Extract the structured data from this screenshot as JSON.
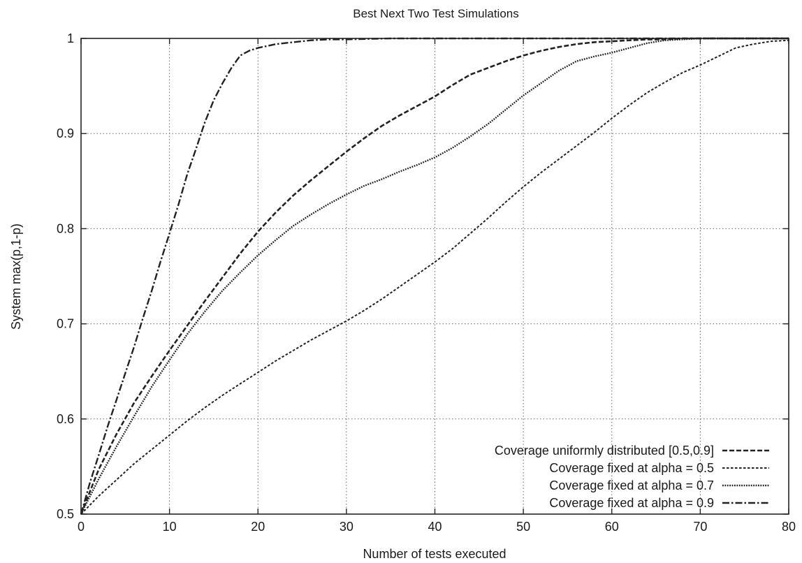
{
  "chart_data": {
    "type": "line",
    "title": "Best Next Two Test Simulations",
    "xlabel": "Number of tests executed",
    "ylabel": "System max(p,1-p)",
    "xlim": [
      0,
      80
    ],
    "ylim": [
      0.5,
      1
    ],
    "x_ticks": [
      "0",
      "10",
      "20",
      "30",
      "40",
      "50",
      "60",
      "70",
      "80"
    ],
    "y_ticks": [
      "0.5",
      "0.6",
      "0.7",
      "0.8",
      "0.9",
      "1"
    ],
    "grid": true,
    "legend_position": "bottom-right",
    "series": [
      {
        "name": "Coverage uniformly distributed [0.5,0.9]",
        "style": "dashed",
        "x": [
          0,
          2,
          4,
          6,
          8,
          10,
          12,
          14,
          16,
          18,
          20,
          22,
          24,
          26,
          28,
          30,
          32,
          34,
          36,
          38,
          40,
          42,
          44,
          46,
          48,
          50,
          52,
          54,
          56,
          58,
          60,
          62,
          64,
          66,
          68,
          70,
          72,
          74,
          76,
          78,
          80
        ],
        "y": [
          0.5,
          0.547,
          0.584,
          0.617,
          0.645,
          0.672,
          0.698,
          0.724,
          0.749,
          0.774,
          0.797,
          0.817,
          0.835,
          0.851,
          0.866,
          0.881,
          0.895,
          0.908,
          0.919,
          0.929,
          0.939,
          0.951,
          0.962,
          0.969,
          0.976,
          0.982,
          0.987,
          0.991,
          0.994,
          0.996,
          0.997,
          0.998,
          0.999,
          0.999,
          1.0,
          1.0,
          1.0,
          1.0,
          1.0,
          1.0,
          1.0
        ]
      },
      {
        "name": "Coverage fixed at alpha = 0.5",
        "style": "fine-dashed",
        "x": [
          0,
          2,
          4,
          6,
          8,
          10,
          12,
          14,
          16,
          18,
          20,
          22,
          24,
          26,
          28,
          30,
          32,
          34,
          36,
          38,
          40,
          42,
          44,
          46,
          48,
          50,
          52,
          54,
          56,
          58,
          60,
          62,
          64,
          66,
          68,
          70,
          72,
          74,
          76,
          78,
          80
        ],
        "y": [
          0.5,
          0.519,
          0.536,
          0.553,
          0.568,
          0.583,
          0.598,
          0.612,
          0.625,
          0.637,
          0.649,
          0.661,
          0.672,
          0.683,
          0.693,
          0.703,
          0.714,
          0.726,
          0.739,
          0.752,
          0.765,
          0.779,
          0.795,
          0.811,
          0.828,
          0.844,
          0.859,
          0.873,
          0.887,
          0.901,
          0.916,
          0.93,
          0.943,
          0.954,
          0.964,
          0.972,
          0.981,
          0.99,
          0.994,
          0.997,
          0.998
        ]
      },
      {
        "name": "Coverage fixed at alpha = 0.7",
        "style": "dotted",
        "x": [
          0,
          2,
          4,
          6,
          8,
          10,
          12,
          14,
          16,
          18,
          20,
          22,
          24,
          26,
          28,
          30,
          32,
          34,
          36,
          38,
          40,
          42,
          44,
          46,
          48,
          50,
          52,
          54,
          56,
          58,
          60,
          62,
          64,
          66,
          68,
          70,
          72,
          74,
          76,
          78,
          80
        ],
        "y": [
          0.5,
          0.537,
          0.571,
          0.603,
          0.634,
          0.662,
          0.689,
          0.713,
          0.735,
          0.754,
          0.772,
          0.788,
          0.803,
          0.815,
          0.826,
          0.836,
          0.845,
          0.852,
          0.86,
          0.867,
          0.875,
          0.885,
          0.897,
          0.91,
          0.925,
          0.94,
          0.953,
          0.966,
          0.976,
          0.981,
          0.985,
          0.99,
          0.995,
          0.998,
          0.999,
          1.0,
          1.0,
          1.0,
          1.0,
          1.0,
          1.0
        ]
      },
      {
        "name": "Coverage fixed at alpha = 0.9",
        "style": "dash-dot",
        "x": [
          0,
          1,
          2,
          3,
          4,
          5,
          6,
          7,
          8,
          9,
          10,
          11,
          12,
          13,
          14,
          15,
          16,
          17,
          18,
          19,
          20,
          22,
          24,
          26,
          28,
          30,
          35,
          40,
          50,
          60,
          70,
          80
        ],
        "y": [
          0.5,
          0.533,
          0.562,
          0.592,
          0.62,
          0.648,
          0.676,
          0.706,
          0.735,
          0.766,
          0.795,
          0.825,
          0.857,
          0.884,
          0.912,
          0.935,
          0.953,
          0.969,
          0.982,
          0.987,
          0.99,
          0.994,
          0.996,
          0.998,
          0.999,
          0.999,
          1.0,
          1.0,
          1.0,
          1.0,
          1.0,
          1.0
        ]
      }
    ]
  }
}
